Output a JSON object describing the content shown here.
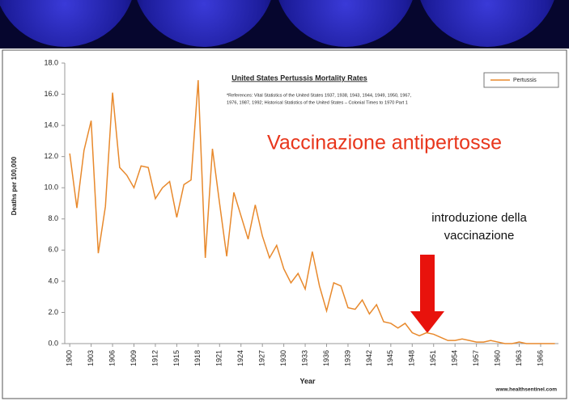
{
  "chart_data": {
    "type": "line",
    "title": "United States Pertussis Mortality Rates",
    "references": [
      "*References: Vital Statistics of the United States 1937, 1938, 1943, 1944, 1949, 1950, 1967,",
      "1976, 1987, 1992; Historical Statistics of the United States – Colonial Times to 1970 Part 1"
    ],
    "headline": "Vaccinazione antipertosse",
    "annotation": [
      "introduzione della",
      "vaccinazione"
    ],
    "source": "www.healthsentinel.com",
    "x_label": "Year",
    "y_label": "Deaths per 100,000",
    "x": [
      1900,
      1901,
      1902,
      1903,
      1904,
      1905,
      1906,
      1907,
      1908,
      1909,
      1910,
      1911,
      1912,
      1913,
      1914,
      1915,
      1916,
      1917,
      1918,
      1919,
      1920,
      1921,
      1922,
      1923,
      1924,
      1925,
      1926,
      1927,
      1928,
      1929,
      1930,
      1931,
      1932,
      1933,
      1934,
      1935,
      1936,
      1937,
      1938,
      1939,
      1940,
      1941,
      1942,
      1943,
      1944,
      1945,
      1946,
      1947,
      1948,
      1949,
      1950,
      1951,
      1952,
      1953,
      1954,
      1955,
      1956,
      1957,
      1958,
      1959,
      1960,
      1961,
      1962,
      1963,
      1964,
      1965,
      1966,
      1967,
      1968
    ],
    "series": [
      {
        "name": "Pertussis",
        "color": "#e8892c",
        "values": [
          12.2,
          8.7,
          12.4,
          14.3,
          5.8,
          8.8,
          16.1,
          11.3,
          10.8,
          10.0,
          11.4,
          11.3,
          9.3,
          10.0,
          10.4,
          8.1,
          10.2,
          10.5,
          16.9,
          5.5,
          12.5,
          9.0,
          5.6,
          9.7,
          8.2,
          6.7,
          8.9,
          6.9,
          5.5,
          6.3,
          4.8,
          3.9,
          4.5,
          3.5,
          5.9,
          3.7,
          2.1,
          3.9,
          3.7,
          2.3,
          2.2,
          2.8,
          1.9,
          2.5,
          1.4,
          1.3,
          1.0,
          1.3,
          0.7,
          0.5,
          0.7,
          0.6,
          0.4,
          0.2,
          0.2,
          0.3,
          0.2,
          0.1,
          0.1,
          0.2,
          0.1,
          0.0,
          0.0,
          0.1,
          0.0,
          0.0,
          0.0,
          0.0,
          0.0
        ]
      }
    ],
    "xlim": [
      1899.3,
      1968.5
    ],
    "xticks": [
      1900,
      1903,
      1906,
      1909,
      1912,
      1915,
      1918,
      1921,
      1924,
      1927,
      1930,
      1933,
      1936,
      1939,
      1942,
      1945,
      1948,
      1951,
      1954,
      1957,
      1960,
      1963,
      1966
    ],
    "ylim": [
      0,
      18
    ],
    "yticks": [
      {
        "value": 0,
        "label": "0.0"
      },
      {
        "value": 2,
        "label": "2.0"
      },
      {
        "value": 4,
        "label": "4.0"
      },
      {
        "value": 6,
        "label": "6.0"
      },
      {
        "value": 8,
        "label": "8.0"
      },
      {
        "value": 10,
        "label": "10.0"
      },
      {
        "value": 12,
        "label": "12.0"
      },
      {
        "value": 14,
        "label": "14.0"
      },
      {
        "value": 16,
        "label": "16.0"
      },
      {
        "value": 18,
        "label": "18.0"
      }
    ],
    "legend": "top-right"
  }
}
